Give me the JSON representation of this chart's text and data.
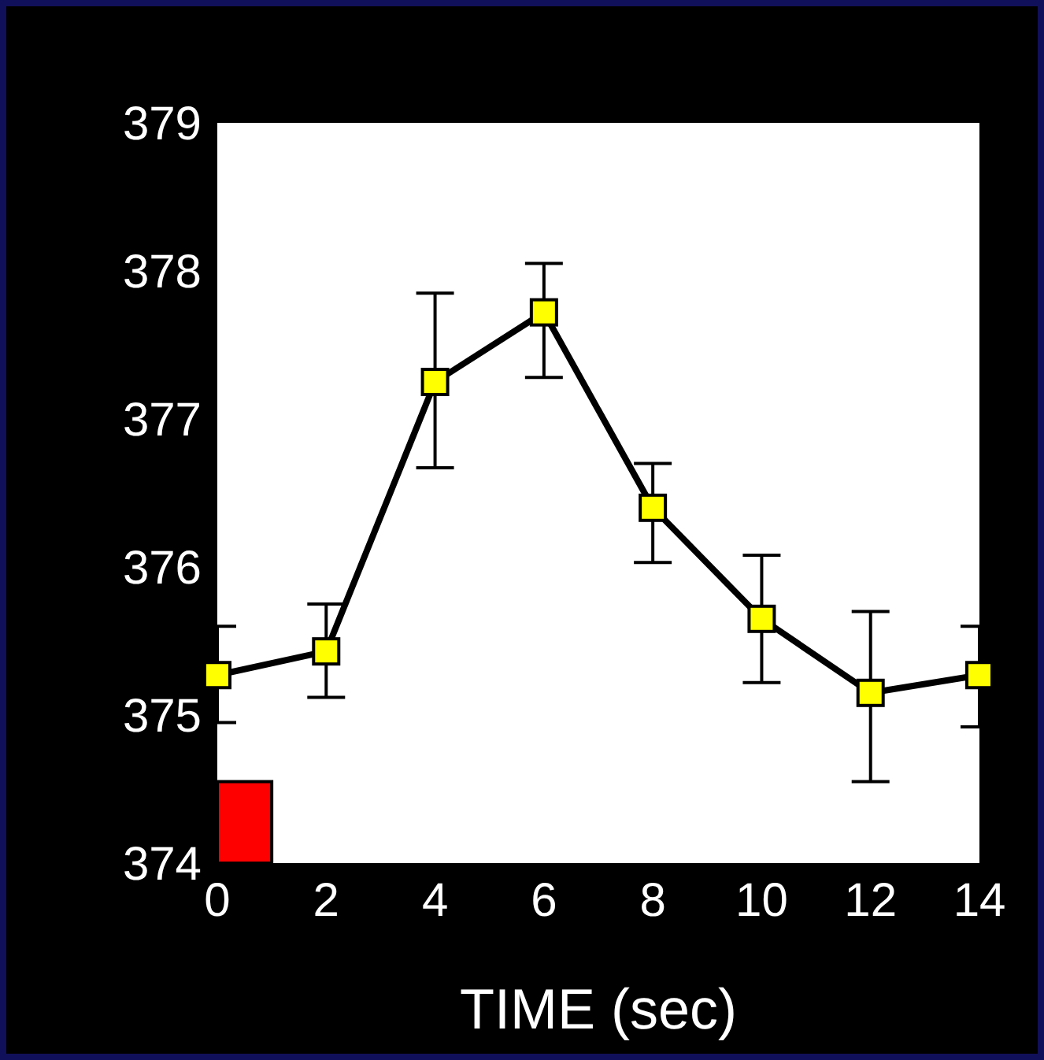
{
  "chart_data": {
    "type": "line",
    "xlabel": "TIME (sec)",
    "x": [
      0,
      2,
      4,
      6,
      8,
      10,
      12,
      14
    ],
    "series": [
      {
        "color": "#000000",
        "values": [
          375.27,
          375.43,
          377.25,
          377.72,
          376.4,
          375.65,
          375.15,
          375.27
        ],
        "errors": [
          [
            374.95,
            375.6
          ],
          [
            375.12,
            375.75
          ],
          [
            376.67,
            377.85
          ],
          [
            377.28,
            378.05
          ],
          [
            376.03,
            376.7
          ],
          [
            375.22,
            376.08
          ],
          [
            374.55,
            375.7
          ],
          [
            374.92,
            375.6
          ]
        ]
      }
    ],
    "xlim": [
      0,
      14
    ],
    "xticks": [
      0,
      2,
      4,
      6,
      8,
      10,
      12,
      14
    ],
    "ylim": [
      374,
      379
    ],
    "yticks": [
      374,
      375,
      376,
      377,
      378,
      379
    ],
    "marker": "square",
    "line_style": "solid",
    "bands": [
      {
        "axis": "x",
        "from": 0,
        "to": 1,
        "color": "#ff0000"
      }
    ]
  }
}
